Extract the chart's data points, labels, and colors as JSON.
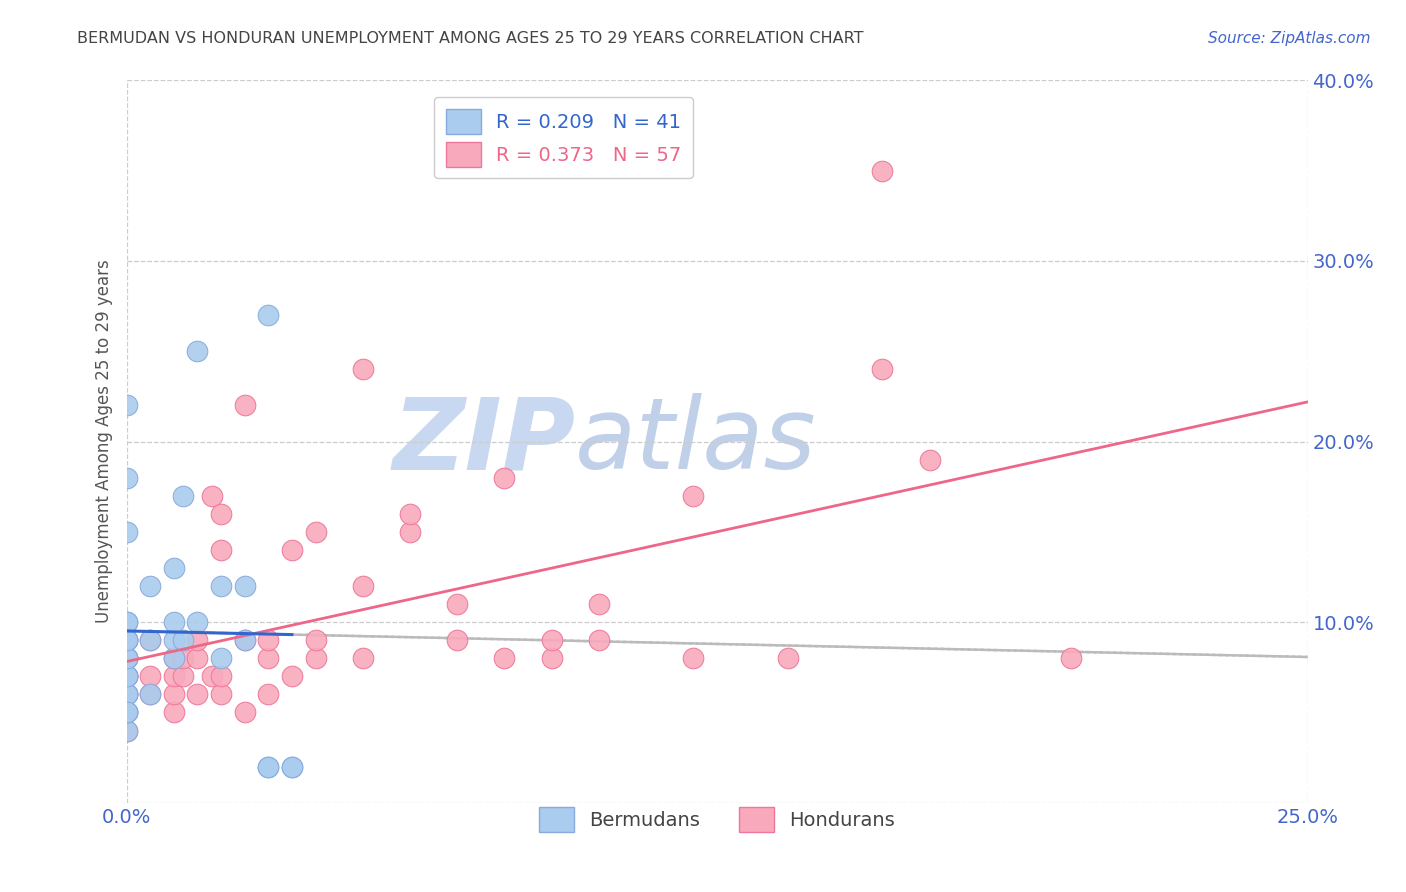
{
  "title": "BERMUDAN VS HONDURAN UNEMPLOYMENT AMONG AGES 25 TO 29 YEARS CORRELATION CHART",
  "source": "Source: ZipAtlas.com",
  "ylabel": "Unemployment Among Ages 25 to 29 years",
  "xlim": [
    0.0,
    0.25
  ],
  "ylim": [
    0.0,
    0.4
  ],
  "background_color": "#ffffff",
  "bermuda_color": "#aaccee",
  "bermuda_edge": "#88aadd",
  "honduran_color": "#f8aabc",
  "honduran_edge": "#ee7799",
  "bermuda_line_color": "#3366cc",
  "honduran_line_color": "#ee6688",
  "gray_dash_color": "#bbbbbb",
  "legend_r_bermuda": "0.209",
  "legend_n_bermuda": "41",
  "legend_r_honduran": "0.373",
  "legend_n_honduran": "57",
  "tick_label_color": "#4466cc",
  "title_color": "#444444",
  "watermark_zip_color": "#c8d8f0",
  "watermark_atlas_color": "#c0d0e8",
  "bermuda_x": [
    0.0,
    0.0,
    0.0,
    0.0,
    0.0,
    0.0,
    0.0,
    0.0,
    0.0,
    0.0,
    0.0,
    0.0,
    0.0,
    0.0,
    0.0,
    0.0,
    0.0,
    0.005,
    0.005,
    0.005,
    0.01,
    0.01,
    0.01,
    0.01,
    0.012,
    0.012,
    0.015,
    0.015,
    0.02,
    0.02,
    0.025,
    0.025,
    0.03,
    0.03,
    0.03,
    0.035,
    0.035,
    0.0,
    0.0,
    0.0,
    0.0
  ],
  "bermuda_y": [
    0.04,
    0.05,
    0.06,
    0.06,
    0.07,
    0.07,
    0.08,
    0.08,
    0.09,
    0.09,
    0.1,
    0.1,
    0.05,
    0.06,
    0.07,
    0.08,
    0.09,
    0.06,
    0.09,
    0.12,
    0.08,
    0.09,
    0.1,
    0.13,
    0.09,
    0.17,
    0.1,
    0.25,
    0.08,
    0.12,
    0.09,
    0.12,
    0.02,
    0.02,
    0.27,
    0.02,
    0.02,
    0.15,
    0.18,
    0.22,
    0.05
  ],
  "honduran_x": [
    0.0,
    0.0,
    0.0,
    0.0,
    0.0,
    0.0,
    0.0,
    0.0,
    0.005,
    0.005,
    0.005,
    0.01,
    0.01,
    0.01,
    0.01,
    0.012,
    0.012,
    0.015,
    0.015,
    0.015,
    0.018,
    0.018,
    0.02,
    0.02,
    0.02,
    0.02,
    0.025,
    0.025,
    0.025,
    0.03,
    0.03,
    0.03,
    0.035,
    0.035,
    0.04,
    0.04,
    0.04,
    0.05,
    0.05,
    0.05,
    0.06,
    0.06,
    0.07,
    0.07,
    0.08,
    0.08,
    0.09,
    0.09,
    0.1,
    0.1,
    0.12,
    0.12,
    0.14,
    0.16,
    0.16,
    0.17,
    0.2
  ],
  "honduran_y": [
    0.04,
    0.05,
    0.06,
    0.07,
    0.07,
    0.08,
    0.08,
    0.09,
    0.06,
    0.07,
    0.09,
    0.05,
    0.06,
    0.07,
    0.08,
    0.07,
    0.08,
    0.06,
    0.08,
    0.09,
    0.07,
    0.17,
    0.06,
    0.07,
    0.14,
    0.16,
    0.05,
    0.09,
    0.22,
    0.06,
    0.08,
    0.09,
    0.07,
    0.14,
    0.08,
    0.09,
    0.15,
    0.08,
    0.12,
    0.24,
    0.15,
    0.16,
    0.09,
    0.11,
    0.08,
    0.18,
    0.08,
    0.09,
    0.09,
    0.11,
    0.08,
    0.17,
    0.08,
    0.24,
    0.35,
    0.19,
    0.08
  ]
}
